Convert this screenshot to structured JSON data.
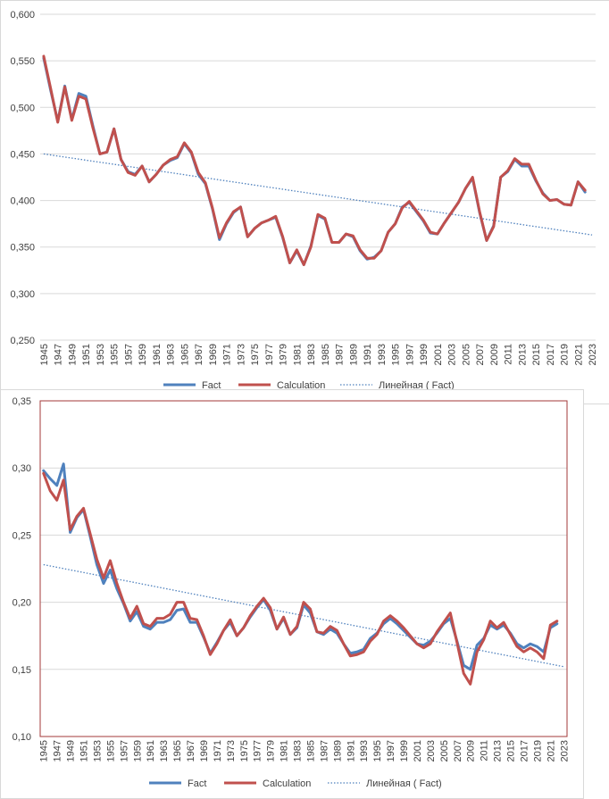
{
  "chart_data": [
    {
      "type": "line",
      "title": "",
      "xlabel": "",
      "ylabel": "",
      "ylim": [
        0.25,
        0.6
      ],
      "yticks": [
        "0,250",
        "0,300",
        "0,350",
        "0,400",
        "0,450",
        "0,500",
        "0,550",
        "0,600"
      ],
      "ytick_values": [
        0.25,
        0.3,
        0.35,
        0.4,
        0.45,
        0.5,
        0.55,
        0.6
      ],
      "x_start": 1945,
      "x_end": 2023,
      "x_tick_labels": [
        "1945",
        "1947",
        "1949",
        "1951",
        "1953",
        "1955",
        "1957",
        "1959",
        "1961",
        "1963",
        "1965",
        "1967",
        "1969",
        "1971",
        "1973",
        "1975",
        "1977",
        "1979",
        "1981",
        "1983",
        "1985",
        "1987",
        "1989",
        "1991",
        "1993",
        "1995",
        "1997",
        "1999",
        "2001",
        "2003",
        "2005",
        "2007",
        "2009",
        "2011",
        "2013",
        "2015",
        "2017",
        "2019",
        "2021",
        "2023"
      ],
      "grid": true,
      "legend_position": "bottom",
      "series": [
        {
          "name": "Fact",
          "color": "#4f81bd",
          "values": [
            0.553,
            0.518,
            0.485,
            0.523,
            0.487,
            0.515,
            0.512,
            0.48,
            0.45,
            0.452,
            0.477,
            0.444,
            0.431,
            0.428,
            0.437,
            0.42,
            0.428,
            0.438,
            0.443,
            0.446,
            0.461,
            0.451,
            0.428,
            0.418,
            0.391,
            0.358,
            0.375,
            0.387,
            0.393,
            0.361,
            0.37,
            0.376,
            0.379,
            0.382,
            0.36,
            0.333,
            0.346,
            0.331,
            0.351,
            0.384,
            0.38,
            0.355,
            0.355,
            0.364,
            0.361,
            0.346,
            0.337,
            0.339,
            0.346,
            0.366,
            0.375,
            0.393,
            0.398,
            0.388,
            0.378,
            0.365,
            0.364,
            0.376,
            0.387,
            0.398,
            0.413,
            0.424,
            0.387,
            0.357,
            0.373,
            0.425,
            0.431,
            0.444,
            0.437,
            0.437,
            0.421,
            0.408,
            0.4,
            0.401,
            0.396,
            0.395,
            0.42,
            0.409
          ]
        },
        {
          "name": "Calculation",
          "color": "#c0504d",
          "values": [
            0.555,
            0.52,
            0.484,
            0.522,
            0.486,
            0.512,
            0.509,
            0.478,
            0.45,
            0.452,
            0.477,
            0.444,
            0.43,
            0.427,
            0.437,
            0.42,
            0.428,
            0.438,
            0.444,
            0.447,
            0.462,
            0.452,
            0.43,
            0.419,
            0.392,
            0.36,
            0.376,
            0.388,
            0.393,
            0.361,
            0.37,
            0.376,
            0.379,
            0.383,
            0.361,
            0.333,
            0.347,
            0.331,
            0.35,
            0.385,
            0.381,
            0.355,
            0.355,
            0.364,
            0.362,
            0.347,
            0.338,
            0.338,
            0.346,
            0.366,
            0.375,
            0.392,
            0.399,
            0.389,
            0.379,
            0.366,
            0.364,
            0.376,
            0.387,
            0.398,
            0.413,
            0.425,
            0.388,
            0.357,
            0.372,
            0.425,
            0.432,
            0.445,
            0.439,
            0.439,
            0.422,
            0.407,
            0.4,
            0.401,
            0.396,
            0.395,
            0.42,
            0.411
          ]
        }
      ],
      "trendline": {
        "name": "Линейная ( Fact)",
        "color": "#4f81bd",
        "start": 0.45,
        "end": 0.363
      }
    },
    {
      "type": "line",
      "title": "",
      "xlabel": "",
      "ylabel": "",
      "ylim": [
        0.1,
        0.35
      ],
      "yticks": [
        "0,10",
        "0,15",
        "0,20",
        "0,25",
        "0,30",
        "0,35"
      ],
      "ytick_values": [
        0.1,
        0.15,
        0.2,
        0.25,
        0.3,
        0.35
      ],
      "x_start": 1945,
      "x_end": 2023,
      "x_tick_labels": [
        "1945",
        "1947",
        "1949",
        "1951",
        "1953",
        "1955",
        "1957",
        "1959",
        "1961",
        "1963",
        "1965",
        "1967",
        "1969",
        "1971",
        "1973",
        "1975",
        "1977",
        "1979",
        "1981",
        "1983",
        "1985",
        "1987",
        "1989",
        "1991",
        "1993",
        "1995",
        "1997",
        "1999",
        "2001",
        "2003",
        "2005",
        "2007",
        "2009",
        "2011",
        "2013",
        "2015",
        "2017",
        "2019",
        "2021",
        "2023"
      ],
      "grid": true,
      "legend_position": "bottom",
      "series": [
        {
          "name": "Fact",
          "color": "#4f81bd",
          "values": [
            0.298,
            0.292,
            0.287,
            0.303,
            0.252,
            0.263,
            0.269,
            0.249,
            0.228,
            0.214,
            0.224,
            0.21,
            0.199,
            0.186,
            0.193,
            0.182,
            0.18,
            0.185,
            0.185,
            0.187,
            0.194,
            0.195,
            0.185,
            0.185,
            0.174,
            0.162,
            0.17,
            0.179,
            0.185,
            0.175,
            0.181,
            0.189,
            0.196,
            0.202,
            0.194,
            0.18,
            0.188,
            0.176,
            0.181,
            0.198,
            0.192,
            0.178,
            0.176,
            0.18,
            0.177,
            0.169,
            0.162,
            0.163,
            0.165,
            0.173,
            0.177,
            0.184,
            0.188,
            0.184,
            0.179,
            0.174,
            0.169,
            0.168,
            0.171,
            0.177,
            0.184,
            0.188,
            0.171,
            0.153,
            0.15,
            0.168,
            0.173,
            0.183,
            0.18,
            0.183,
            0.177,
            0.169,
            0.166,
            0.169,
            0.167,
            0.163,
            0.181,
            0.184
          ]
        },
        {
          "name": "Calculation",
          "color": "#c0504d",
          "values": [
            0.296,
            0.283,
            0.276,
            0.291,
            0.254,
            0.264,
            0.27,
            0.251,
            0.232,
            0.218,
            0.231,
            0.214,
            0.2,
            0.188,
            0.197,
            0.184,
            0.182,
            0.188,
            0.188,
            0.191,
            0.2,
            0.2,
            0.188,
            0.187,
            0.175,
            0.161,
            0.169,
            0.179,
            0.187,
            0.175,
            0.181,
            0.19,
            0.197,
            0.203,
            0.196,
            0.18,
            0.189,
            0.176,
            0.182,
            0.2,
            0.195,
            0.178,
            0.177,
            0.182,
            0.179,
            0.169,
            0.16,
            0.161,
            0.163,
            0.171,
            0.176,
            0.186,
            0.19,
            0.186,
            0.181,
            0.175,
            0.169,
            0.166,
            0.169,
            0.178,
            0.185,
            0.192,
            0.17,
            0.147,
            0.139,
            0.163,
            0.172,
            0.186,
            0.181,
            0.185,
            0.176,
            0.167,
            0.163,
            0.166,
            0.163,
            0.158,
            0.183,
            0.186
          ]
        }
      ],
      "trendline": {
        "name": "Линейная ( Fact)",
        "color": "#4f81bd",
        "start": 0.228,
        "end": 0.152
      }
    }
  ]
}
